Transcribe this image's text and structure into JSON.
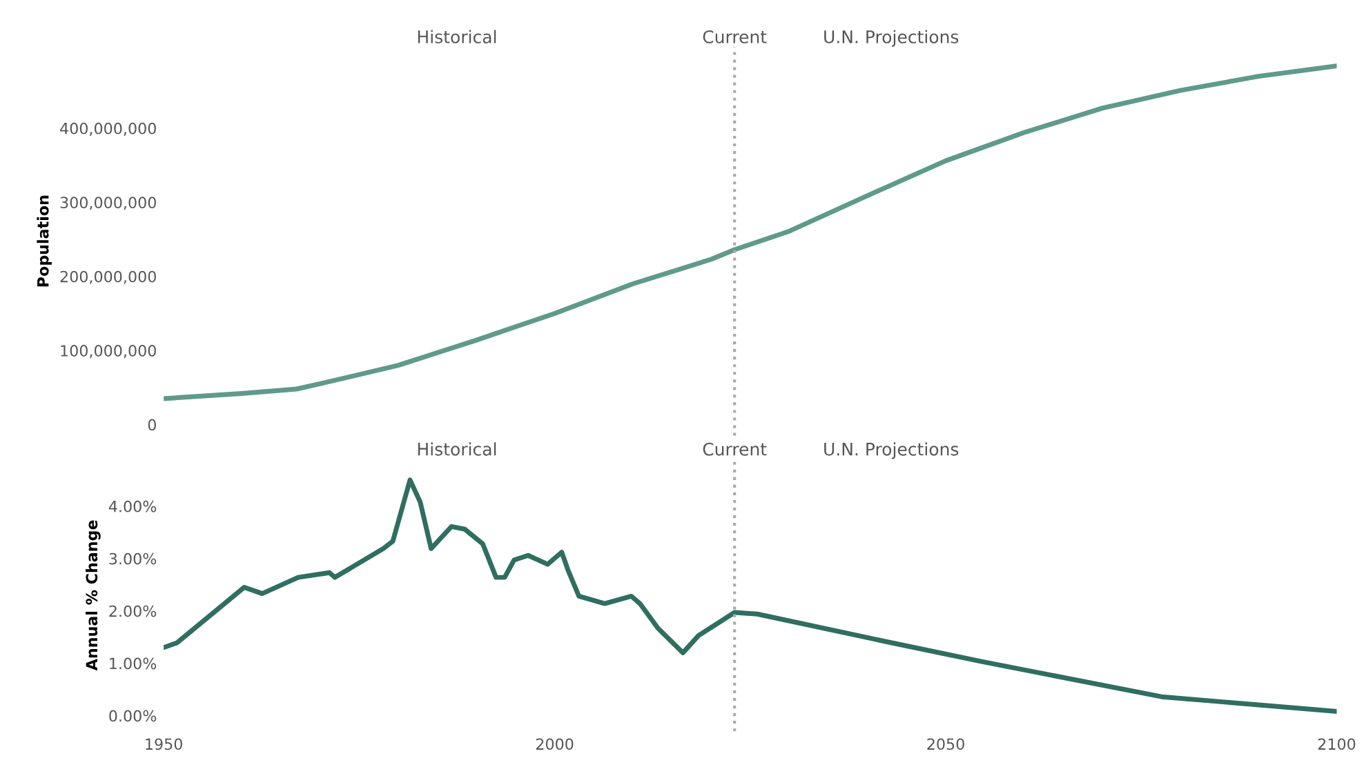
{
  "chart_data": [
    {
      "type": "line",
      "ylabel": "Population",
      "tick_labels": "y",
      "grid": false,
      "legend": false,
      "x": [
        1950,
        1960,
        1967,
        1970,
        1980,
        1990,
        2000,
        2010,
        2020,
        2023,
        2030,
        2040,
        2050,
        2060,
        2070,
        2080,
        2090,
        2100
      ],
      "series": [
        {
          "color": "#5f9a8a",
          "values": [
            35000000,
            42000000,
            48000000,
            55000000,
            80000000,
            114000000,
            150000000,
            190000000,
            223000000,
            236000000,
            261000000,
            309000000,
            356000000,
            394000000,
            427000000,
            451000000,
            470000000,
            484000000
          ]
        }
      ],
      "xlim": [
        1950,
        2100
      ],
      "xticks": [
        1950,
        2000,
        2050,
        2100
      ],
      "ylim": [
        -15000000,
        510000000
      ],
      "yticks": [
        {
          "value": 0,
          "label": "0"
        },
        {
          "value": 100000000,
          "label": "100,000,000"
        },
        {
          "value": 200000000,
          "label": "200,000,000"
        },
        {
          "value": 300000000,
          "label": "300,000,000"
        },
        {
          "value": 400000000,
          "label": "400,000,000"
        }
      ],
      "ref_lines": [
        {
          "axis": "x",
          "value": 2023,
          "label": "Current",
          "color": "#aaaaaa",
          "line_style": "dotted"
        }
      ],
      "annotations": [
        "Historical",
        "U.N. Projections"
      ]
    },
    {
      "type": "line",
      "ylabel": "Annual % Change",
      "grid": false,
      "legend": false,
      "x": [
        1950,
        1951.7,
        1960.3,
        1962.6,
        1967.2,
        1971.2,
        1971.9,
        1978.1,
        1979.3,
        1981.5,
        1982.8,
        1984.2,
        1986.8,
        1988.5,
        1990.8,
        1992.5,
        1993.6,
        1994.8,
        1996.6,
        1999.1,
        2000.9,
        2001.7,
        2003.1,
        2006.4,
        2009.8,
        2010.9,
        2013.2,
        2016.4,
        2018.4,
        2023,
        2025.9,
        2043.1,
        2054.7,
        2077.6,
        2100
      ],
      "series": [
        {
          "color": "#2f6e60",
          "values": [
            1.3,
            1.39,
            2.45,
            2.33,
            2.64,
            2.73,
            2.64,
            3.19,
            3.33,
            4.5,
            4.08,
            3.19,
            3.61,
            3.56,
            3.28,
            2.64,
            2.64,
            2.97,
            3.06,
            2.89,
            3.12,
            2.78,
            2.28,
            2.14,
            2.28,
            2.14,
            1.67,
            1.2,
            1.53,
            1.97,
            1.94,
            1.39,
            1.03,
            0.36,
            0.08
          ]
        }
      ],
      "xlim": [
        1950,
        2100
      ],
      "ylim": [
        -0.3,
        4.9
      ],
      "xticks": [
        1950,
        2000,
        2050,
        2100
      ],
      "yticks": [
        {
          "value": 0,
          "label": "0.00%"
        },
        {
          "value": 1,
          "label": "1.00%"
        },
        {
          "value": 2,
          "label": "2.00%"
        },
        {
          "value": 3,
          "label": "3.00%"
        },
        {
          "value": 4,
          "label": "4.00%"
        }
      ],
      "ref_lines": [
        {
          "axis": "x",
          "value": 2023,
          "label": "Current",
          "color": "#aaaaaa",
          "line_style": "dotted"
        }
      ],
      "annotations": [
        "Historical",
        "U.N. Projections"
      ]
    }
  ]
}
